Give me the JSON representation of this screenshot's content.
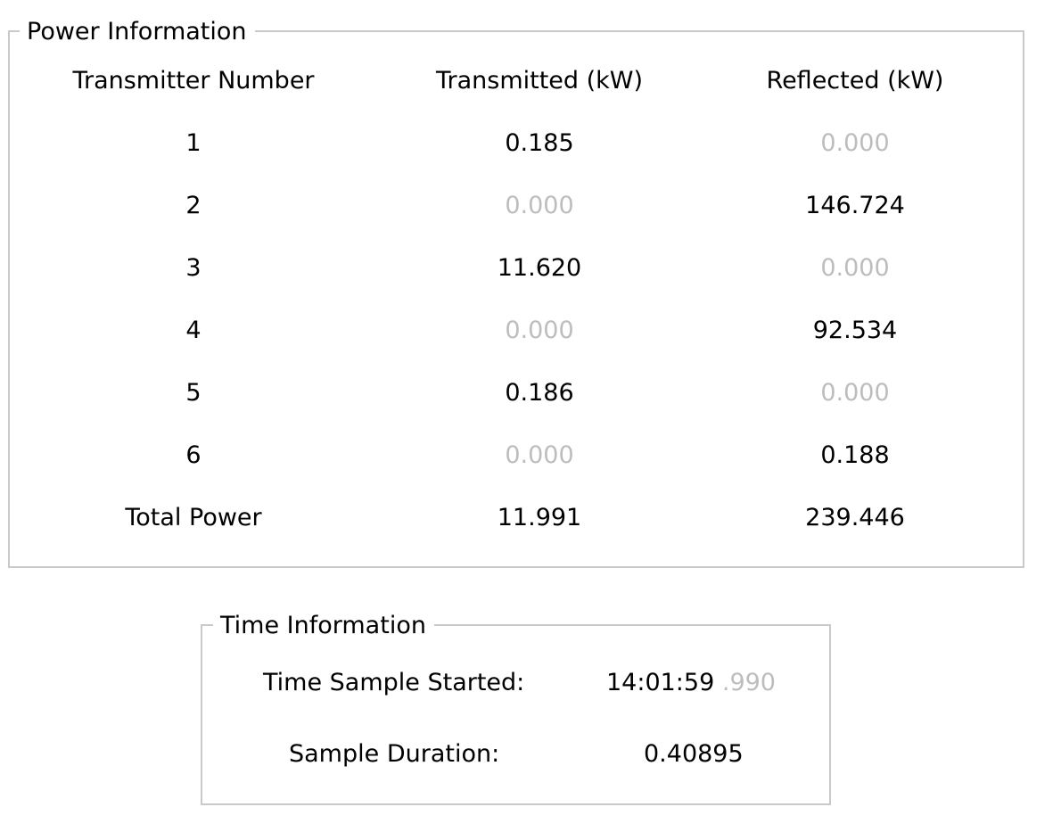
{
  "power": {
    "title": "Power Information",
    "columns": [
      "Transmitter Number",
      "Transmitted (kW)",
      "Reflected (kW)"
    ],
    "rows": [
      {
        "number": "1",
        "transmitted": "0.185",
        "transmitted_active": true,
        "reflected": "0.000",
        "reflected_active": false
      },
      {
        "number": "2",
        "transmitted": "0.000",
        "transmitted_active": false,
        "reflected": "146.724",
        "reflected_active": true
      },
      {
        "number": "3",
        "transmitted": "11.620",
        "transmitted_active": true,
        "reflected": "0.000",
        "reflected_active": false
      },
      {
        "number": "4",
        "transmitted": "0.000",
        "transmitted_active": false,
        "reflected": "92.534",
        "reflected_active": true
      },
      {
        "number": "5",
        "transmitted": "0.186",
        "transmitted_active": true,
        "reflected": "0.000",
        "reflected_active": false
      },
      {
        "number": "6",
        "transmitted": "0.000",
        "transmitted_active": false,
        "reflected": "0.188",
        "reflected_active": true
      }
    ],
    "total": {
      "label": "Total Power",
      "transmitted": "11.991",
      "reflected": "239.446"
    }
  },
  "time": {
    "title": "Time Information",
    "started_label": "Time Sample Started:",
    "started_value": "14:01:59",
    "started_fraction": ".990",
    "duration_label": "Sample Duration:",
    "duration_value": "0.40895"
  },
  "colors": {
    "border": "#c9c9c9",
    "dim_text": "#bdbdbd",
    "text": "#000000",
    "background": "#ffffff"
  }
}
